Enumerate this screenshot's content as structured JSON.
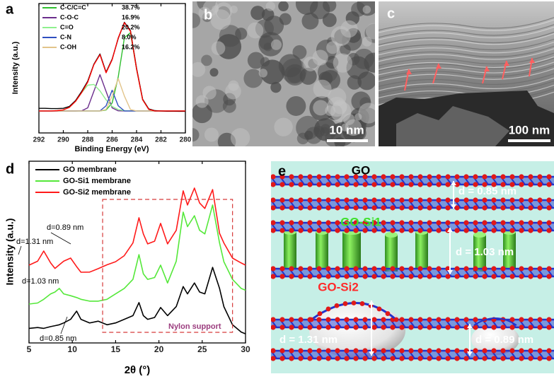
{
  "panel_labels": [
    "a",
    "b",
    "c",
    "d",
    "e"
  ],
  "chart_data": [
    {
      "type": "line",
      "xlabel": "Binding Energy (eV)",
      "ylabel": "Intensity (a.u.)",
      "x": [
        292,
        291.5,
        291,
        290.5,
        290,
        289.5,
        289,
        288.5,
        288,
        287.5,
        287,
        286.5,
        286,
        285.5,
        285,
        284.5,
        284,
        283.5,
        283,
        282.5,
        282,
        281.5,
        281,
        280.5,
        280
      ],
      "xlim": [
        292,
        280
      ],
      "xticks": [
        292,
        290,
        288,
        286,
        284,
        282,
        280
      ],
      "ylim": [
        0,
        100
      ],
      "series": [
        {
          "name": "C-C/C=C",
          "share": "38.7%",
          "color": "#2fbf2f",
          "values": [
            17,
            17,
            17,
            17,
            17,
            17,
            17,
            17,
            17,
            17,
            17,
            17.7,
            23.1,
            43.3,
            73.5,
            77.5,
            49.4,
            25.7,
            18.2,
            17,
            17,
            17,
            17,
            17,
            17
          ]
        },
        {
          "name": "C-O-C",
          "share": "16.9%",
          "color": "#6b2d8c",
          "values": [
            17,
            17,
            17,
            17,
            17,
            17,
            17,
            17.1,
            19.4,
            32.1,
            45,
            32.1,
            19.4,
            17.1,
            17,
            17,
            17,
            17,
            17,
            17,
            17,
            17,
            17,
            17,
            17
          ]
        },
        {
          "name": "C=O",
          "share": "20.2%",
          "color": "#8ef08e",
          "values": [
            17,
            17,
            17,
            17.2,
            17.8,
            19.8,
            24.4,
            31.1,
            36.9,
            37.5,
            32.5,
            25.6,
            20.5,
            18.1,
            17.2,
            17,
            17,
            17,
            17,
            17,
            17,
            17,
            17,
            17,
            17
          ]
        },
        {
          "name": "C-N",
          "share": "8.0%",
          "color": "#2f4fbf",
          "values": [
            17,
            17,
            17,
            17,
            17,
            17,
            17,
            17,
            17,
            17,
            17,
            21,
            33,
            21,
            17,
            17,
            17,
            17,
            17,
            17,
            17,
            17,
            17,
            17,
            17
          ]
        },
        {
          "name": "C-OH",
          "share": "16.2%",
          "color": "#e2c48a",
          "values": [
            17,
            17,
            17,
            17,
            17,
            17,
            17,
            17,
            17,
            17,
            17,
            18.1,
            28.5,
            42,
            28.5,
            18.1,
            17,
            17,
            17,
            17,
            17,
            17,
            17,
            17,
            17
          ]
        },
        {
          "color": "#000000",
          "values": [
            19,
            19,
            18.8,
            18.8,
            19,
            20.5,
            25,
            32,
            40,
            53,
            61,
            47,
            57,
            73,
            85.5,
            79,
            50,
            26,
            18.5,
            17.2,
            17,
            16.8,
            16.8,
            16.7,
            16.7
          ]
        },
        {
          "color": "#ff0000",
          "values": [
            17,
            17,
            17,
            17.2,
            17.8,
            19.8,
            24.4,
            31.2,
            39.3,
            52.6,
            60.5,
            46.5,
            56.5,
            73.5,
            85.2,
            78.6,
            49.4,
            25.7,
            18.2,
            17,
            17,
            17,
            17,
            17,
            17
          ]
        }
      ]
    },
    {
      "type": "line",
      "xlabel": "2θ (°)",
      "ylabel": "Intensity (a.u.)",
      "x": [
        5,
        6,
        6.7,
        7.5,
        8,
        8.5,
        9,
        9.8,
        10.5,
        11,
        12,
        13,
        14,
        15,
        16,
        17,
        17.7,
        18.2,
        18.7,
        19.5,
        20.2,
        21,
        22,
        22.8,
        23.3,
        24.1,
        24.7,
        25.3,
        26.2,
        27,
        27.5,
        28.5,
        29.5,
        30
      ],
      "xlim": [
        5,
        30
      ],
      "xticks": [
        5,
        10,
        15,
        20,
        25,
        30
      ],
      "ylim": [
        0,
        100
      ],
      "series": [
        {
          "name": "GO membrane",
          "color": "#000000",
          "values": [
            8,
            8.5,
            8,
            9,
            9.5,
            10,
            11,
            13,
            17.5,
            13,
            11,
            12,
            10,
            11,
            13,
            15,
            22.2,
            15,
            13,
            14,
            19.5,
            15,
            20,
            31,
            27,
            33,
            28,
            27,
            41.6,
            30,
            20,
            10,
            6,
            5
          ]
        },
        {
          "name": "GO-Si1 membrane",
          "color": "#55e83a",
          "values": [
            21.4,
            22,
            24,
            27,
            28,
            30,
            27,
            26,
            25,
            24,
            23,
            23,
            24,
            27,
            30,
            35,
            48.6,
            38,
            35,
            36,
            42.8,
            33,
            45,
            72,
            64,
            70,
            62,
            60,
            75.9,
            55,
            44.7,
            35,
            30,
            29
          ]
        },
        {
          "name": "GO-Si2 membrane",
          "color": "#ff1a1a",
          "values": [
            42.8,
            45,
            50.6,
            44,
            41,
            43,
            45,
            46.7,
            42,
            38.9,
            39,
            40.9,
            43,
            44.7,
            48,
            55,
            68.9,
            60,
            54.5,
            56,
            65.8,
            54.5,
            62,
            83.7,
            75.9,
            85.2,
            77,
            74,
            84.4,
            60.3,
            55,
            46.7,
            44,
            42.8
          ]
        }
      ],
      "annotations": [
        "d=0.89 nm",
        "d=1.31 nm",
        "d=1.03 nm",
        "d=0.85 nm",
        "Nylon support"
      ]
    }
  ],
  "images": {
    "b": {
      "scale_bar": "10 nm"
    },
    "c": {
      "scale_bar": "100 nm"
    }
  },
  "diagram": {
    "layers": [
      "GO",
      "GO-Si1",
      "GO-Si2"
    ],
    "spacings": [
      "d = 0.85 nm",
      "d = 1.03 nm",
      "d = 1.31 nm",
      "d = 0.89 nm"
    ]
  }
}
